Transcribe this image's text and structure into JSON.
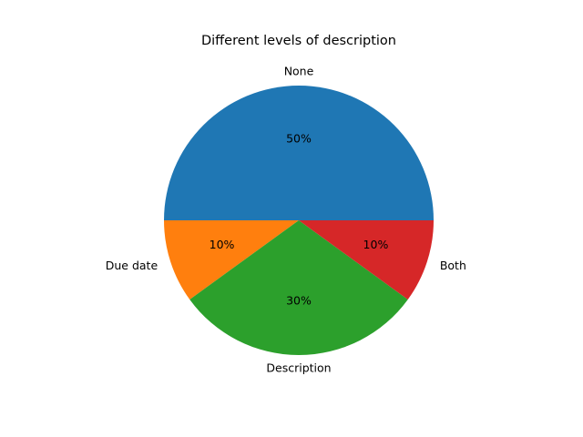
{
  "chart_data": {
    "type": "pie",
    "title": "Different levels of description",
    "categories": [
      "None",
      "Due date",
      "Description",
      "Both"
    ],
    "values": [
      50,
      10,
      30,
      10
    ],
    "percent_labels": [
      "50%",
      "10%",
      "30%",
      "10%"
    ],
    "colors": [
      "#1f77b4",
      "#ff7f0e",
      "#2ca02c",
      "#d62728"
    ],
    "legend": "none",
    "start_angle": "0 degrees (3 o'clock), counter-clockwise"
  }
}
